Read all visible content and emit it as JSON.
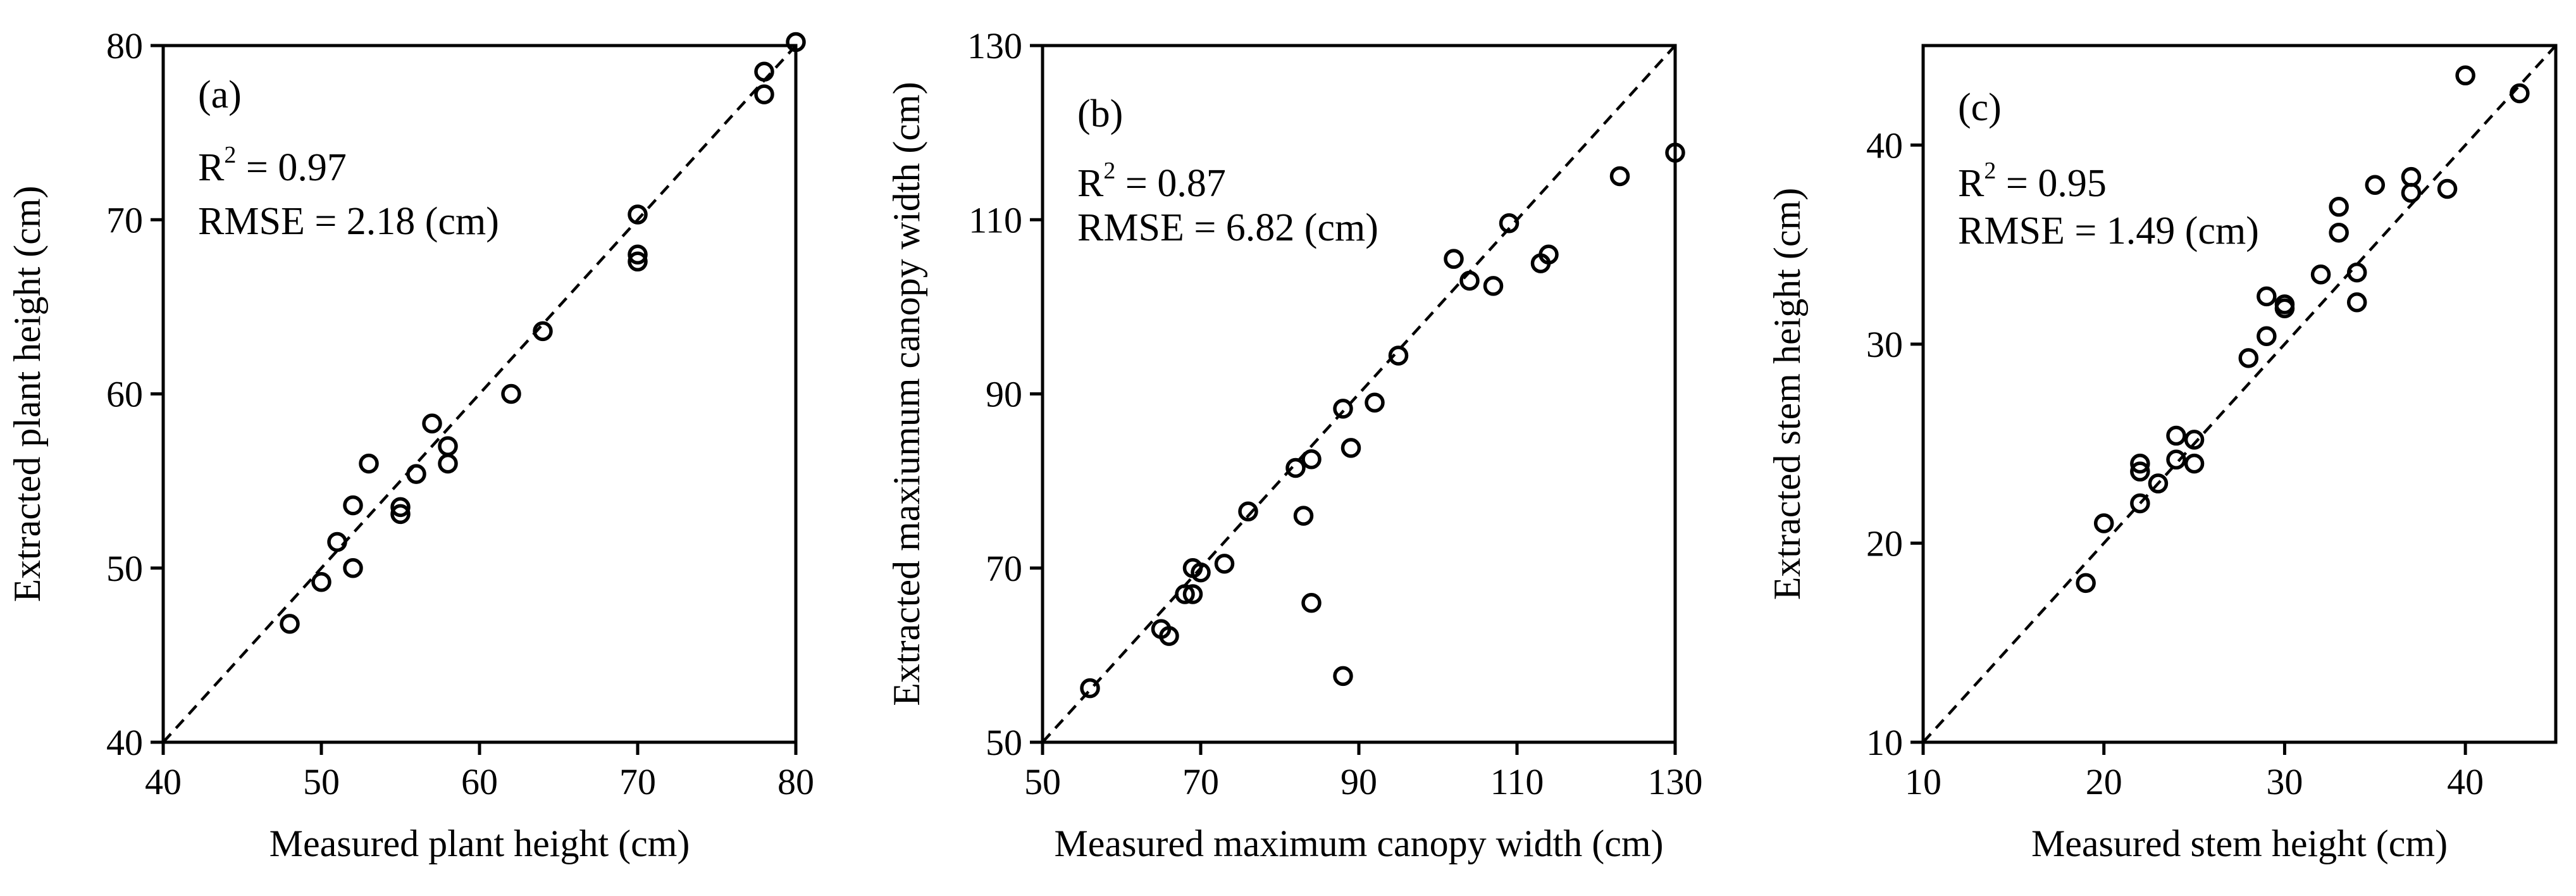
{
  "chart_data": [
    {
      "type": "scatter",
      "panel_label": "(a)",
      "r2_label": "R",
      "r2_sup": "2",
      "r2_value": " = 0.97",
      "rmse_text": "RMSE = 2.18 (cm)",
      "xlabel": "Measured plant height (cm)",
      "ylabel": "Extracted plant height (cm)",
      "xlim": [
        40,
        80
      ],
      "ylim": [
        40,
        80
      ],
      "xticks": [
        40,
        50,
        60,
        70,
        80
      ],
      "yticks": [
        40,
        50,
        60,
        70,
        80
      ],
      "reference_line": "1:1 dashed",
      "points": [
        [
          48,
          46.8
        ],
        [
          50,
          49.2
        ],
        [
          51,
          51.5
        ],
        [
          52,
          53.6
        ],
        [
          52,
          50.0
        ],
        [
          53,
          56.0
        ],
        [
          55,
          53.5
        ],
        [
          55,
          53.1
        ],
        [
          56,
          55.4
        ],
        [
          57,
          58.3
        ],
        [
          58,
          57.0
        ],
        [
          58,
          56.0
        ],
        [
          62,
          60.0
        ],
        [
          64,
          63.6
        ],
        [
          70,
          70.3
        ],
        [
          70,
          68.0
        ],
        [
          70,
          67.6
        ],
        [
          78,
          78.5
        ],
        [
          78,
          77.2
        ],
        [
          80,
          80.2
        ]
      ]
    },
    {
      "type": "scatter",
      "panel_label": "(b)",
      "r2_label": "R",
      "r2_sup": "2",
      "r2_value": " = 0.87",
      "rmse_text": "RMSE = 6.82 (cm)",
      "xlabel": "Measured maximum canopy width (cm)",
      "ylabel": "Extracted maxiumum canopy width (cm)",
      "xlim": [
        50,
        130
      ],
      "ylim": [
        50,
        130
      ],
      "xticks": [
        50,
        70,
        90,
        110,
        130
      ],
      "yticks": [
        50,
        70,
        90,
        110,
        130
      ],
      "reference_line": "1:1 dashed",
      "points": [
        [
          56,
          56.2
        ],
        [
          65,
          63.0
        ],
        [
          66,
          62.2
        ],
        [
          68,
          67.0
        ],
        [
          69,
          70.0
        ],
        [
          69,
          67.0
        ],
        [
          70,
          69.5
        ],
        [
          73,
          70.5
        ],
        [
          76,
          76.5
        ],
        [
          82,
          81.5
        ],
        [
          83,
          76.0
        ],
        [
          84,
          82.5
        ],
        [
          84,
          66.0
        ],
        [
          88,
          88.3
        ],
        [
          89,
          83.8
        ],
        [
          88,
          57.6
        ],
        [
          92,
          89.0
        ],
        [
          95,
          94.4
        ],
        [
          102,
          105.5
        ],
        [
          104,
          103.0
        ],
        [
          107,
          102.4
        ],
        [
          109,
          109.6
        ],
        [
          113,
          105.0
        ],
        [
          114,
          106.0
        ],
        [
          123,
          115.0
        ],
        [
          130,
          117.7
        ]
      ]
    },
    {
      "type": "scatter",
      "panel_label": "(c)",
      "r2_label": "R",
      "r2_sup": "2",
      "r2_value": " = 0.95",
      "rmse_text": "RMSE = 1.49 (cm)",
      "xlabel": "Measured stem height (cm)",
      "ylabel": "Extracted stem height (cm)",
      "xlim": [
        10,
        45
      ],
      "ylim": [
        10,
        45
      ],
      "xticks": [
        10,
        20,
        30,
        40
      ],
      "yticks": [
        10,
        20,
        30,
        40
      ],
      "reference_line": "1:1 dashed",
      "points": [
        [
          19,
          18.0
        ],
        [
          20,
          21.0
        ],
        [
          22,
          24.0
        ],
        [
          22,
          23.6
        ],
        [
          22,
          22.0
        ],
        [
          23,
          23.0
        ],
        [
          24,
          25.4
        ],
        [
          24,
          24.2
        ],
        [
          25,
          25.2
        ],
        [
          25,
          24.0
        ],
        [
          28,
          29.3
        ],
        [
          29,
          30.4
        ],
        [
          29,
          32.4
        ],
        [
          30,
          32.0
        ],
        [
          30,
          31.8
        ],
        [
          32,
          33.5
        ],
        [
          33,
          36.9
        ],
        [
          33,
          35.6
        ],
        [
          34,
          33.6
        ],
        [
          34,
          32.1
        ],
        [
          35,
          38.0
        ],
        [
          37,
          38.4
        ],
        [
          37,
          37.6
        ],
        [
          39,
          37.8
        ],
        [
          40,
          43.5
        ],
        [
          43,
          42.6
        ]
      ]
    }
  ]
}
